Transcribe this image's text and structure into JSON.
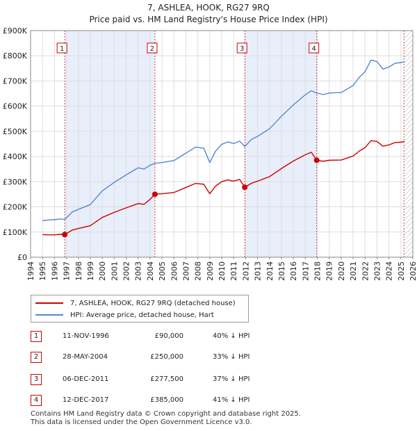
{
  "titles": {
    "line1": "7, ASHLEA, HOOK, RG27 9RQ",
    "line2": "Price paid vs. HM Land Registry's House Price Index (HPI)"
  },
  "chart_data": {
    "type": "line",
    "title": "Price paid vs. HM Land Registry's House Price Index (HPI)",
    "xlabel": "",
    "ylabel": "",
    "xlim": [
      1994,
      2026
    ],
    "ylim": [
      0,
      900000
    ],
    "x_ticks": [
      "1994",
      "1995",
      "1996",
      "1997",
      "1998",
      "1999",
      "2000",
      "2001",
      "2002",
      "2003",
      "2004",
      "2005",
      "2006",
      "2007",
      "2008",
      "2009",
      "2010",
      "2011",
      "2012",
      "2013",
      "2014",
      "2015",
      "2016",
      "2017",
      "2018",
      "2019",
      "2020",
      "2021",
      "2022",
      "2023",
      "2024",
      "2025",
      "2026"
    ],
    "y_ticks": [
      {
        "value": 0,
        "label": "£0"
      },
      {
        "value": 100000,
        "label": "£100K"
      },
      {
        "value": 200000,
        "label": "£200K"
      },
      {
        "value": 300000,
        "label": "£300K"
      },
      {
        "value": 400000,
        "label": "£400K"
      },
      {
        "value": 500000,
        "label": "£500K"
      },
      {
        "value": 600000,
        "label": "£600K"
      },
      {
        "value": 700000,
        "label": "£700K"
      },
      {
        "value": 800000,
        "label": "£800K"
      },
      {
        "value": 900000,
        "label": "£900K"
      }
    ],
    "grid": true,
    "series": [
      {
        "name": "7, ASHLEA, HOOK, RG27 9RQ (detached house)",
        "color": "#cc0000",
        "x": [
          1995.0,
          1995.5,
          1996.0,
          1996.5,
          1996.86,
          1997.5,
          1998.0,
          1999.0,
          2000.0,
          2001.0,
          2002.0,
          2003.0,
          2003.5,
          2004.0,
          2004.41,
          2005.0,
          2006.0,
          2007.0,
          2007.8,
          2008.5,
          2009.0,
          2009.5,
          2010.0,
          2010.5,
          2011.0,
          2011.5,
          2011.93,
          2012.5,
          2013.0,
          2014.0,
          2015.0,
          2016.0,
          2017.0,
          2017.5,
          2017.95,
          2018.5,
          2019.0,
          2020.0,
          2021.0,
          2021.5,
          2022.0,
          2022.5,
          2023.0,
          2023.5,
          2024.0,
          2024.5,
          2025.0,
          2025.3
        ],
        "y": [
          90000,
          89000,
          89000,
          91000,
          90000,
          108000,
          114000,
          125000,
          158000,
          178000,
          196000,
          213000,
          210000,
          230000,
          250000,
          252000,
          257000,
          277000,
          293000,
          290000,
          252000,
          283000,
          300000,
          307000,
          302000,
          309000,
          277500,
          294000,
          302000,
          320000,
          352000,
          382000,
          407000,
          417000,
          385000,
          381000,
          385000,
          386000,
          402000,
          421000,
          435000,
          463000,
          460000,
          441000,
          446000,
          455000,
          457000,
          459000
        ]
      },
      {
        "name": "HPI: Average price, detached house, Hart",
        "color": "#5588cc",
        "x": [
          1995.0,
          1995.5,
          1996.0,
          1996.5,
          1996.86,
          1997.5,
          1998.0,
          1999.0,
          2000.0,
          2001.0,
          2002.0,
          2003.0,
          2003.5,
          2004.0,
          2004.41,
          2005.0,
          2006.0,
          2007.0,
          2007.8,
          2008.5,
          2009.0,
          2009.5,
          2010.0,
          2010.5,
          2011.0,
          2011.5,
          2011.93,
          2012.5,
          2013.0,
          2014.0,
          2015.0,
          2016.0,
          2017.0,
          2017.5,
          2017.95,
          2018.5,
          2019.0,
          2020.0,
          2021.0,
          2021.5,
          2022.0,
          2022.5,
          2023.0,
          2023.5,
          2024.0,
          2024.5,
          2025.0,
          2025.3
        ],
        "y": [
          145000,
          148000,
          149000,
          152000,
          150000,
          180000,
          190000,
          209000,
          263000,
          297000,
          327000,
          355000,
          350000,
          365000,
          373000,
          376000,
          384000,
          413000,
          437000,
          433000,
          376000,
          422000,
          448000,
          458000,
          451000,
          461000,
          440000,
          468000,
          480000,
          510000,
          560000,
          605000,
          645000,
          661000,
          652000,
          646000,
          652000,
          654000,
          682000,
          714000,
          737000,
          783000,
          777000,
          747000,
          755000,
          770000,
          773000,
          776000
        ]
      }
    ],
    "vlines": [
      1996.86,
      2004.41,
      2011.93,
      2017.95,
      2025.25
    ],
    "markers": [
      {
        "label": "1",
        "x": 1996.86,
        "y": 90000
      },
      {
        "label": "2",
        "x": 2004.41,
        "y": 250000
      },
      {
        "label": "3",
        "x": 2011.93,
        "y": 277500
      },
      {
        "label": "4",
        "x": 2017.95,
        "y": 385000
      }
    ],
    "shaded_periods": [
      [
        1996.86,
        2004.41
      ],
      [
        2011.93,
        2017.95
      ]
    ],
    "hatched_from": 2025.25
  },
  "legend": {
    "property_label": "7, ASHLEA, HOOK, RG27 9RQ (detached house)",
    "hpi_label": "HPI: Average price, detached house, Hart",
    "property_color": "#cc0000",
    "hpi_color": "#5588cc"
  },
  "sales": [
    {
      "num": "1",
      "date": "11-NOV-1996",
      "price": "£90,000",
      "hpi": "40% ↓ HPI"
    },
    {
      "num": "2",
      "date": "28-MAY-2004",
      "price": "£250,000",
      "hpi": "33% ↓ HPI"
    },
    {
      "num": "3",
      "date": "06-DEC-2011",
      "price": "£277,500",
      "hpi": "37% ↓ HPI"
    },
    {
      "num": "4",
      "date": "12-DEC-2017",
      "price": "£385,000",
      "hpi": "41% ↓ HPI"
    }
  ],
  "footer": {
    "line1": "Contains HM Land Registry data © Crown copyright and database right 2025.",
    "line2": "This data is licensed under the Open Government Licence v3.0."
  }
}
